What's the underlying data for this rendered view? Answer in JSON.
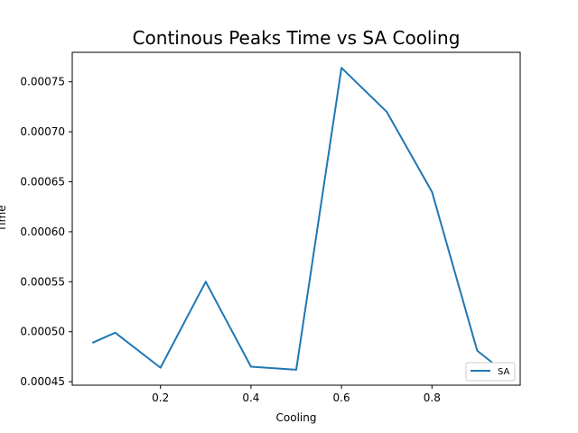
{
  "chart_data": {
    "type": "line",
    "title": "Continous Peaks Time vs SA Cooling",
    "xlabel": "Cooling",
    "ylabel": "Time",
    "x": [
      0.05,
      0.1,
      0.2,
      0.3,
      0.4,
      0.5,
      0.6,
      0.7,
      0.8,
      0.9,
      0.95
    ],
    "series": [
      {
        "name": "SA",
        "color": "#1f77b4",
        "values": [
          0.000489,
          0.000499,
          0.000464,
          0.00055,
          0.000465,
          0.000462,
          0.000764,
          0.00072,
          0.00064,
          0.000481,
          0.000463
        ]
      }
    ],
    "xlim": [
      0.005,
      0.995
    ],
    "ylim": [
      0.0004465,
      0.0007795
    ],
    "xticks": [
      0.2,
      0.4,
      0.6,
      0.8
    ],
    "xtick_labels": [
      "0.2",
      "0.4",
      "0.6",
      "0.8"
    ],
    "yticks": [
      0.00045,
      0.0005,
      0.00055,
      0.0006,
      0.00065,
      0.0007,
      0.00075
    ],
    "ytick_labels": [
      "0.00045",
      "0.00050",
      "0.00055",
      "0.00060",
      "0.00065",
      "0.00070",
      "0.00075"
    ],
    "grid": false,
    "legend_position": "lower-right"
  }
}
